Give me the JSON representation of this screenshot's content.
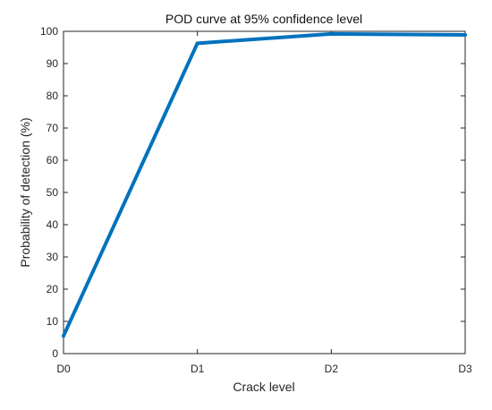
{
  "chart_data": {
    "type": "line",
    "title": "POD curve at 95% confidence level",
    "xlabel": "Crack level",
    "ylabel": "Probability of detection (%)",
    "categories": [
      "D0",
      "D1",
      "D2",
      "D3"
    ],
    "series": [
      {
        "values": [
          5.5,
          96.3,
          99.2,
          98.9
        ],
        "color": "#0072bd"
      }
    ],
    "ylim": [
      0,
      100
    ],
    "yticks": [
      0,
      10,
      20,
      30,
      40,
      50,
      60,
      70,
      80,
      90,
      100
    ],
    "grid": false,
    "legend": "none"
  }
}
